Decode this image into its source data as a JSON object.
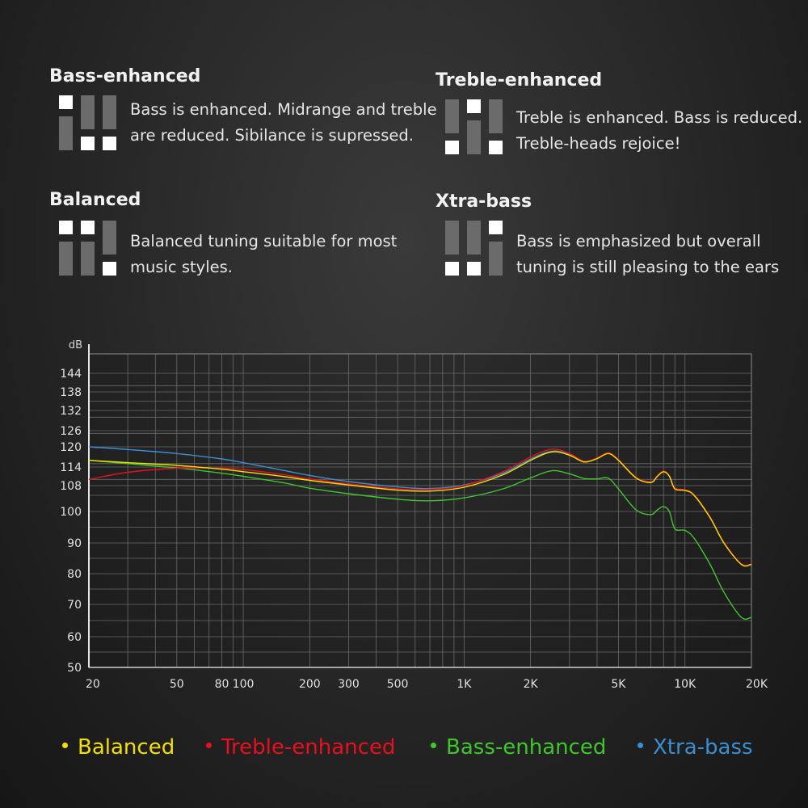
{
  "modes": [
    {
      "title": "Bass-enhanced",
      "desc": [
        "Bass is enhanced. Midrange and treble",
        "are reduced. Sibilance is supressed."
      ],
      "icon": "eq-bass-enhanced-icon"
    },
    {
      "title": "Treble-enhanced",
      "desc": [
        "Treble is enhanced. Bass is reduced.",
        "Treble-heads rejoice!"
      ],
      "icon": "eq-treble-enhanced-icon"
    },
    {
      "title": "Balanced",
      "desc": [
        "Balanced tuning suitable for most",
        "music styles."
      ],
      "icon": "eq-balanced-icon"
    },
    {
      "title": "Xtra-bass",
      "desc": [
        "Bass is emphasized but overall",
        "tuning is still pleasing to the ears"
      ],
      "icon": "eq-xtra-bass-icon"
    }
  ],
  "legend": [
    {
      "name": "Balanced",
      "color": "#f2e000"
    },
    {
      "name": "Treble-enhanced",
      "color": "#e8101e"
    },
    {
      "name": "Bass-enhanced",
      "color": "#3ec62c"
    },
    {
      "name": "Xtra-bass",
      "color": "#3a8fd0"
    }
  ],
  "chart_data": {
    "type": "line",
    "ylabel": "dB",
    "xlabel": "",
    "x_scale": "log",
    "xlim": [
      20,
      20000
    ],
    "x_tick_labels": [
      {
        "value": 20,
        "label": "20"
      },
      {
        "value": 50,
        "label": "50"
      },
      {
        "value": 80,
        "label": "80"
      },
      {
        "value": 100,
        "label": "100"
      },
      {
        "value": 200,
        "label": "200"
      },
      {
        "value": 300,
        "label": "300"
      },
      {
        "value": 500,
        "label": "500"
      },
      {
        "value": 1000,
        "label": "1K"
      },
      {
        "value": 2000,
        "label": "2K"
      },
      {
        "value": 5000,
        "label": "5K"
      },
      {
        "value": 10000,
        "label": "10K"
      },
      {
        "value": 20000,
        "label": "20K"
      }
    ],
    "y_tick_labels": [
      "50",
      "60",
      "70",
      "80",
      "90",
      "100",
      "108",
      "114",
      "120",
      "126",
      "132",
      "138",
      "144"
    ],
    "grid": true,
    "series": [
      {
        "name": "Balanced",
        "color": "#f2e000",
        "points": [
          [
            20,
            116
          ],
          [
            30,
            115.3
          ],
          [
            50,
            114.5
          ],
          [
            80,
            113.3
          ],
          [
            100,
            112.5
          ],
          [
            150,
            111
          ],
          [
            200,
            109.7
          ],
          [
            300,
            108.2
          ],
          [
            500,
            106.6
          ],
          [
            700,
            106.3
          ],
          [
            1000,
            107.5
          ],
          [
            1500,
            111.5
          ],
          [
            2000,
            116
          ],
          [
            2500,
            118.5
          ],
          [
            3000,
            117.5
          ],
          [
            3500,
            115.5
          ],
          [
            4000,
            116.5
          ],
          [
            4500,
            118
          ],
          [
            5000,
            116
          ],
          [
            6000,
            110.5
          ],
          [
            7000,
            109
          ],
          [
            7500,
            111
          ],
          [
            8000,
            112.5
          ],
          [
            8500,
            111
          ],
          [
            9000,
            107
          ],
          [
            10000,
            106.5
          ],
          [
            11000,
            105
          ],
          [
            13000,
            98
          ],
          [
            15000,
            90
          ],
          [
            18000,
            83
          ],
          [
            20000,
            83
          ]
        ]
      },
      {
        "name": "Treble-enhanced",
        "color": "#e8101e",
        "points": [
          [
            20,
            110
          ],
          [
            30,
            112.3
          ],
          [
            50,
            113.6
          ],
          [
            80,
            113.6
          ],
          [
            100,
            113.2
          ],
          [
            150,
            111.6
          ],
          [
            200,
            110.2
          ],
          [
            300,
            108.6
          ],
          [
            500,
            107
          ],
          [
            700,
            106.8
          ],
          [
            1000,
            108
          ],
          [
            1500,
            112.5
          ],
          [
            2000,
            117
          ],
          [
            2500,
            119.3
          ],
          [
            3000,
            118
          ],
          [
            3500,
            115.7
          ],
          [
            4000,
            116.7
          ],
          [
            4500,
            118.2
          ],
          [
            5000,
            116.2
          ],
          [
            6000,
            110.7
          ],
          [
            7000,
            109.2
          ],
          [
            7500,
            111.2
          ],
          [
            8000,
            112.7
          ],
          [
            8500,
            111.2
          ],
          [
            9000,
            107.3
          ],
          [
            10000,
            106.7
          ],
          [
            11000,
            105.2
          ],
          [
            13000,
            98.2
          ],
          [
            15000,
            90.2
          ],
          [
            18000,
            83.2
          ],
          [
            20000,
            83.2
          ]
        ]
      },
      {
        "name": "Bass-enhanced",
        "color": "#3ec62c",
        "points": [
          [
            20,
            116
          ],
          [
            30,
            115
          ],
          [
            50,
            113.7
          ],
          [
            80,
            112
          ],
          [
            100,
            111
          ],
          [
            150,
            109
          ],
          [
            200,
            107.2
          ],
          [
            300,
            105.5
          ],
          [
            500,
            103.8
          ],
          [
            700,
            103.3
          ],
          [
            1000,
            104.2
          ],
          [
            1500,
            107
          ],
          [
            2000,
            110.5
          ],
          [
            2500,
            112.8
          ],
          [
            3000,
            111.8
          ],
          [
            3500,
            110.3
          ],
          [
            4000,
            110.2
          ],
          [
            4500,
            110.4
          ],
          [
            5000,
            107
          ],
          [
            6000,
            100.5
          ],
          [
            7000,
            99
          ],
          [
            7500,
            100.5
          ],
          [
            8000,
            101.5
          ],
          [
            8500,
            100
          ],
          [
            9000,
            94.5
          ],
          [
            10000,
            94
          ],
          [
            11000,
            91.5
          ],
          [
            13000,
            83
          ],
          [
            15000,
            74
          ],
          [
            18000,
            66
          ],
          [
            20000,
            66
          ]
        ]
      },
      {
        "name": "Xtra-bass",
        "color": "#3a8fd0",
        "points": [
          [
            20,
            120
          ],
          [
            30,
            119.2
          ],
          [
            50,
            118
          ],
          [
            80,
            116.4
          ],
          [
            100,
            115.3
          ],
          [
            150,
            113
          ],
          [
            200,
            111.3
          ],
          [
            300,
            109.3
          ],
          [
            500,
            107.6
          ],
          [
            700,
            107.1
          ],
          [
            1000,
            108.2
          ],
          [
            1500,
            112
          ],
          [
            2000,
            116.4
          ],
          [
            2500,
            118.7
          ],
          [
            3000,
            117.7
          ],
          [
            3500,
            115.7
          ],
          [
            4000,
            116.6
          ],
          [
            4500,
            118.1
          ],
          [
            5000,
            116.1
          ],
          [
            6000,
            110.6
          ],
          [
            7000,
            109.1
          ],
          [
            7500,
            111.1
          ],
          [
            8000,
            112.6
          ],
          [
            8500,
            111.1
          ],
          [
            9000,
            107.1
          ],
          [
            10000,
            106.6
          ],
          [
            11000,
            105.1
          ],
          [
            13000,
            98.1
          ],
          [
            15000,
            90.1
          ],
          [
            18000,
            83.1
          ],
          [
            20000,
            83.1
          ]
        ]
      }
    ]
  }
}
